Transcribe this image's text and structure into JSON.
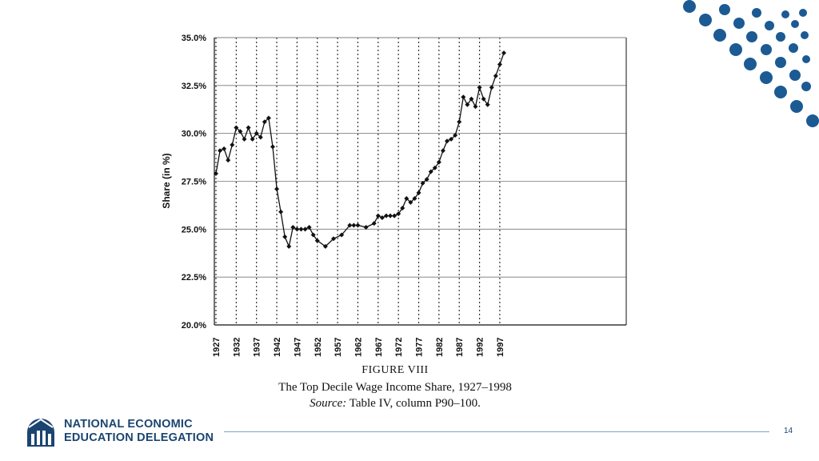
{
  "chart_data": {
    "type": "line",
    "ylabel": "Share (in %)",
    "ylim": [
      20,
      35
    ],
    "xlim": [
      1927,
      1998
    ],
    "y_ticks": [
      20.0,
      22.5,
      25.0,
      27.5,
      30.0,
      32.5,
      35.0
    ],
    "y_tick_labels": [
      "20.0%",
      "22.5%",
      "25.0%",
      "27.5%",
      "30.0%",
      "32.5%",
      "35.0%"
    ],
    "x_ticks": [
      1927,
      1932,
      1937,
      1942,
      1947,
      1952,
      1957,
      1962,
      1967,
      1972,
      1977,
      1982,
      1987,
      1992,
      1997
    ],
    "x_tick_labels": [
      "1927",
      "1932",
      "1937",
      "1942",
      "1947",
      "1952",
      "1957",
      "1962",
      "1967",
      "1972",
      "1977",
      "1982",
      "1987",
      "1992",
      "1997"
    ],
    "grid": "horizontal solid, vertical dotted",
    "x": [
      1927,
      1928,
      1929,
      1930,
      1931,
      1932,
      1933,
      1934,
      1935,
      1936,
      1937,
      1938,
      1939,
      1940,
      1941,
      1942,
      1943,
      1944,
      1945,
      1946,
      1947,
      1948,
      1949,
      1950,
      1951,
      1952,
      1954,
      1956,
      1958,
      1960,
      1961,
      1962,
      1964,
      1966,
      1967,
      1968,
      1969,
      1970,
      1971,
      1972,
      1973,
      1974,
      1975,
      1976,
      1977,
      1978,
      1979,
      1980,
      1981,
      1982,
      1983,
      1984,
      1985,
      1986,
      1987,
      1988,
      1989,
      1990,
      1991,
      1992,
      1993,
      1994,
      1995,
      1996,
      1997,
      1998
    ],
    "values": [
      27.9,
      29.1,
      29.2,
      28.6,
      29.4,
      30.3,
      30.1,
      29.7,
      30.3,
      29.7,
      30.0,
      29.8,
      30.6,
      30.8,
      29.3,
      27.1,
      25.9,
      24.6,
      24.1,
      25.1,
      25.0,
      25.0,
      25.0,
      25.1,
      24.7,
      24.4,
      24.1,
      24.5,
      24.7,
      25.2,
      25.2,
      25.2,
      25.1,
      25.3,
      25.7,
      25.6,
      25.7,
      25.7,
      25.7,
      25.8,
      26.1,
      26.6,
      26.4,
      26.6,
      26.9,
      27.4,
      27.6,
      28.0,
      28.2,
      28.5,
      29.1,
      29.6,
      29.7,
      29.9,
      30.6,
      31.9,
      31.5,
      31.8,
      31.4,
      32.4,
      31.8,
      31.5,
      32.4,
      33.0,
      33.6,
      34.2
    ]
  },
  "caption": {
    "figure_label": "FIGURE VIII",
    "title": "The Top Decile Wage Income Share, 1927–1998",
    "source_label": "Source:",
    "source_text": " Table IV, column P90–100."
  },
  "footer": {
    "org_line1": "NATIONAL ECONOMIC",
    "org_line2": "EDUCATION DELEGATION",
    "page_number": "14"
  },
  "colors": {
    "navy": "#1b4571",
    "accent_dots": "#1c5a93",
    "ink": "#111111"
  }
}
